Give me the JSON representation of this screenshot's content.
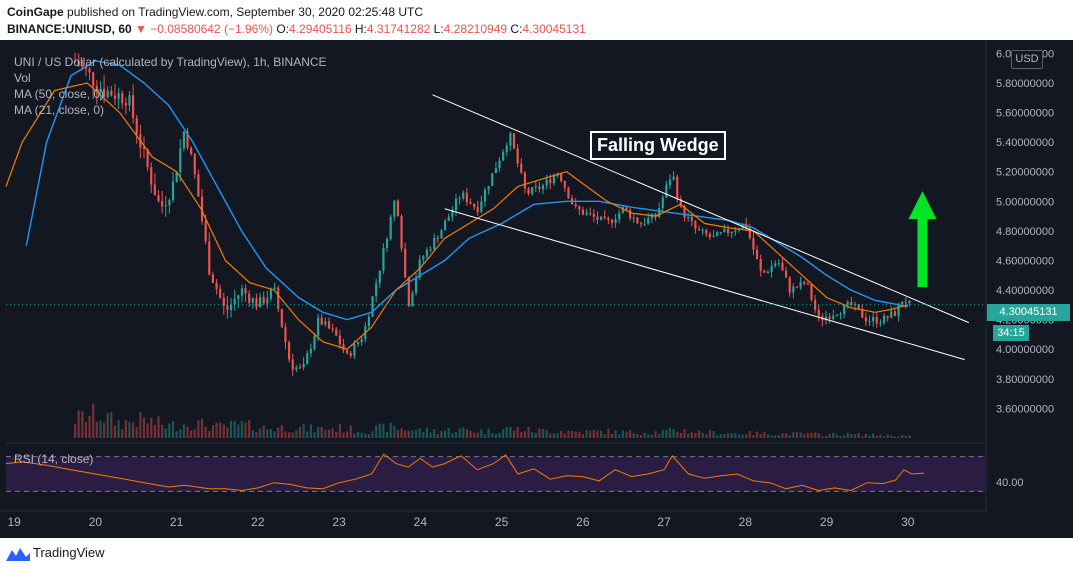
{
  "header": {
    "publisher": "CoinGape",
    "publish_text": "published on TradingView.com, September 30, 2020 02:25:48 UTC",
    "symbol_line": "BINANCE:UNIUSD, 60",
    "change": "▼ −0.08580642 (−1.96%)",
    "o_label": "O:",
    "o": "4.29405116",
    "h_label": "H:",
    "h": "4.31741282",
    "l_label": "L:",
    "l": "4.28210949",
    "c_label": "C:",
    "c": "4.30045131"
  },
  "legend": {
    "title": "UNI / US Dollar (calculated by TradingView), 1h, BINANCE",
    "vol": "Vol",
    "ma50": "MA (50, close, 0)",
    "ma21": "MA (21, close, 0)",
    "rsi": "RSI (14, close)"
  },
  "currency": "USD",
  "last_price": "4.30045131",
  "countdown": "34:15",
  "annotation": "Falling Wedge",
  "footer": {
    "brand": "TradingView"
  },
  "colors": {
    "background": "#131722",
    "up": "#26a69a",
    "down": "#ef5350",
    "ma50": "#2196f3",
    "ma21": "#f57c00",
    "arrow": "#00e626",
    "rsi_band": "#2a1c42"
  },
  "chart_data": {
    "type": "candlestick",
    "x_axis": {
      "ticks": [
        19,
        20,
        21,
        22,
        23,
        24,
        25,
        26,
        27,
        28,
        29,
        30
      ],
      "tick_labels": [
        "19",
        "20",
        "21",
        "22",
        "23",
        "24",
        "25",
        "26",
        "27",
        "28",
        "29",
        "30"
      ],
      "range": [
        18.9,
        30.95
      ]
    },
    "y_axis": {
      "range": [
        3.4,
        6.05
      ],
      "ticks": [
        3.6,
        3.8,
        4.0,
        4.2,
        4.4,
        4.6,
        4.8,
        5.0,
        5.2,
        5.4,
        5.6,
        5.8,
        6.0
      ],
      "tick_labels": [
        "3.60000000",
        "3.80000000",
        "4.00000000",
        "4.20000000",
        "4.40000000",
        "4.60000000",
        "4.80000000",
        "5.00000000",
        "5.20000000",
        "5.40000000",
        "5.60000000",
        "5.80000000",
        "6.00000000"
      ]
    },
    "last_price": 4.30045131,
    "close_path": [
      [
        19.75,
        5.95
      ],
      [
        20.1,
        5.75
      ],
      [
        20.4,
        5.7
      ],
      [
        20.6,
        5.3
      ],
      [
        20.8,
        4.95
      ],
      [
        20.95,
        5.1
      ],
      [
        21.1,
        5.5
      ],
      [
        21.25,
        5.1
      ],
      [
        21.4,
        4.55
      ],
      [
        21.6,
        4.25
      ],
      [
        21.8,
        4.4
      ],
      [
        22.0,
        4.3
      ],
      [
        22.2,
        4.4
      ],
      [
        22.4,
        3.9
      ],
      [
        22.55,
        3.85
      ],
      [
        22.75,
        4.2
      ],
      [
        22.95,
        4.1
      ],
      [
        23.1,
        3.95
      ],
      [
        23.3,
        4.1
      ],
      [
        23.5,
        4.55
      ],
      [
        23.7,
        5.05
      ],
      [
        23.85,
        4.3
      ],
      [
        24.0,
        4.6
      ],
      [
        24.25,
        4.8
      ],
      [
        24.5,
        5.05
      ],
      [
        24.7,
        4.95
      ],
      [
        24.9,
        5.2
      ],
      [
        25.1,
        5.45
      ],
      [
        25.3,
        5.05
      ],
      [
        25.5,
        5.1
      ],
      [
        25.7,
        5.2
      ],
      [
        25.9,
        4.95
      ],
      [
        26.1,
        4.9
      ],
      [
        26.3,
        4.85
      ],
      [
        26.5,
        4.95
      ],
      [
        26.7,
        4.85
      ],
      [
        26.9,
        4.9
      ],
      [
        27.1,
        5.2
      ],
      [
        27.2,
        4.95
      ],
      [
        27.4,
        4.8
      ],
      [
        27.6,
        4.75
      ],
      [
        27.8,
        4.8
      ],
      [
        28.0,
        4.85
      ],
      [
        28.2,
        4.5
      ],
      [
        28.4,
        4.6
      ],
      [
        28.55,
        4.4
      ],
      [
        28.75,
        4.45
      ],
      [
        28.9,
        4.2
      ],
      [
        29.1,
        4.25
      ],
      [
        29.3,
        4.3
      ],
      [
        29.5,
        4.2
      ],
      [
        29.7,
        4.2
      ],
      [
        29.85,
        4.25
      ],
      [
        29.95,
        4.35
      ],
      [
        30.0,
        4.3
      ]
    ],
    "ma50": [
      [
        19.15,
        4.7
      ],
      [
        19.4,
        5.4
      ],
      [
        19.7,
        5.85
      ],
      [
        20.0,
        5.95
      ],
      [
        20.3,
        5.92
      ],
      [
        20.6,
        5.8
      ],
      [
        20.9,
        5.65
      ],
      [
        21.2,
        5.4
      ],
      [
        21.5,
        5.1
      ],
      [
        21.8,
        4.8
      ],
      [
        22.1,
        4.55
      ],
      [
        22.5,
        4.35
      ],
      [
        22.8,
        4.25
      ],
      [
        23.1,
        4.2
      ],
      [
        23.4,
        4.25
      ],
      [
        23.7,
        4.4
      ],
      [
        24.0,
        4.5
      ],
      [
        24.3,
        4.6
      ],
      [
        24.6,
        4.75
      ],
      [
        25.0,
        4.85
      ],
      [
        25.4,
        4.98
      ],
      [
        25.8,
        5.0
      ],
      [
        26.2,
        5.0
      ],
      [
        26.6,
        4.96
      ],
      [
        27.0,
        4.93
      ],
      [
        27.4,
        4.9
      ],
      [
        27.8,
        4.87
      ],
      [
        28.1,
        4.82
      ],
      [
        28.4,
        4.72
      ],
      [
        28.7,
        4.62
      ],
      [
        29.0,
        4.5
      ],
      [
        29.3,
        4.4
      ],
      [
        29.6,
        4.33
      ],
      [
        29.9,
        4.3
      ],
      [
        30.0,
        4.29
      ]
    ],
    "ma21": [
      [
        18.9,
        5.1
      ],
      [
        19.1,
        5.4
      ],
      [
        19.5,
        5.75
      ],
      [
        19.9,
        5.8
      ],
      [
        20.3,
        5.6
      ],
      [
        20.7,
        5.3
      ],
      [
        21.0,
        5.2
      ],
      [
        21.3,
        4.95
      ],
      [
        21.6,
        4.6
      ],
      [
        21.9,
        4.45
      ],
      [
        22.2,
        4.4
      ],
      [
        22.5,
        4.2
      ],
      [
        22.8,
        4.05
      ],
      [
        23.1,
        4.0
      ],
      [
        23.4,
        4.15
      ],
      [
        23.7,
        4.4
      ],
      [
        24.0,
        4.55
      ],
      [
        24.3,
        4.75
      ],
      [
        24.6,
        4.85
      ],
      [
        24.9,
        4.95
      ],
      [
        25.2,
        5.1
      ],
      [
        25.5,
        5.15
      ],
      [
        25.8,
        5.2
      ],
      [
        26.0,
        5.12
      ],
      [
        26.3,
        5.0
      ],
      [
        26.6,
        4.92
      ],
      [
        26.9,
        4.9
      ],
      [
        27.2,
        4.98
      ],
      [
        27.5,
        4.85
      ],
      [
        27.8,
        4.82
      ],
      [
        28.1,
        4.8
      ],
      [
        28.4,
        4.65
      ],
      [
        28.7,
        4.5
      ],
      [
        29.0,
        4.35
      ],
      [
        29.3,
        4.28
      ],
      [
        29.6,
        4.25
      ],
      [
        29.8,
        4.27
      ],
      [
        30.0,
        4.3
      ]
    ],
    "wedge_upper": [
      [
        24.15,
        5.72
      ],
      [
        30.75,
        4.18
      ]
    ],
    "wedge_lower": [
      [
        24.3,
        4.95
      ],
      [
        30.7,
        3.93
      ]
    ],
    "rsi": {
      "range": [
        20,
        80
      ],
      "band": [
        30,
        70
      ],
      "ticks": [
        40
      ],
      "tick_labels": [
        "40.00"
      ],
      "series": [
        [
          18.9,
          62
        ],
        [
          19.1,
          64
        ],
        [
          19.4,
          60
        ],
        [
          19.7,
          55
        ],
        [
          20.0,
          50
        ],
        [
          20.3,
          45
        ],
        [
          20.6,
          40
        ],
        [
          20.9,
          35
        ],
        [
          21.1,
          37
        ],
        [
          21.4,
          33
        ],
        [
          21.6,
          33
        ],
        [
          21.8,
          31
        ],
        [
          22.0,
          34
        ],
        [
          22.2,
          40
        ],
        [
          22.4,
          38
        ],
        [
          22.6,
          34
        ],
        [
          22.8,
          33
        ],
        [
          23.0,
          40
        ],
        [
          23.2,
          44
        ],
        [
          23.4,
          50
        ],
        [
          23.55,
          73
        ],
        [
          23.7,
          62
        ],
        [
          23.85,
          58
        ],
        [
          24.0,
          68
        ],
        [
          24.15,
          58
        ],
        [
          24.3,
          62
        ],
        [
          24.5,
          71
        ],
        [
          24.7,
          55
        ],
        [
          24.9,
          62
        ],
        [
          25.05,
          72
        ],
        [
          25.2,
          50
        ],
        [
          25.4,
          56
        ],
        [
          25.6,
          44
        ],
        [
          25.8,
          48
        ],
        [
          26.0,
          47
        ],
        [
          26.2,
          42
        ],
        [
          26.4,
          55
        ],
        [
          26.6,
          47
        ],
        [
          26.8,
          50
        ],
        [
          27.0,
          55
        ],
        [
          27.1,
          71
        ],
        [
          27.3,
          50
        ],
        [
          27.5,
          45
        ],
        [
          27.7,
          48
        ],
        [
          27.9,
          50
        ],
        [
          28.1,
          42
        ],
        [
          28.3,
          40
        ],
        [
          28.5,
          33
        ],
        [
          28.7,
          37
        ],
        [
          28.9,
          31
        ],
        [
          29.1,
          34
        ],
        [
          29.3,
          31
        ],
        [
          29.5,
          40
        ],
        [
          29.7,
          39
        ],
        [
          29.85,
          43
        ],
        [
          29.95,
          55
        ],
        [
          30.05,
          50
        ],
        [
          30.2,
          51
        ]
      ]
    },
    "volume_profile": {
      "range": [
        0,
        100
      ],
      "series": [
        [
          18.9,
          80
        ],
        [
          19.1,
          28
        ],
        [
          19.4,
          22
        ],
        [
          19.7,
          30
        ],
        [
          20.0,
          40
        ],
        [
          20.3,
          25
        ],
        [
          20.6,
          30
        ],
        [
          20.9,
          20
        ],
        [
          21.2,
          25
        ],
        [
          21.5,
          18
        ],
        [
          21.8,
          22
        ],
        [
          22.1,
          16
        ],
        [
          22.4,
          18
        ],
        [
          22.7,
          15
        ],
        [
          23.0,
          16
        ],
        [
          23.3,
          12
        ],
        [
          23.6,
          18
        ],
        [
          23.9,
          14
        ],
        [
          24.2,
          12
        ],
        [
          24.5,
          14
        ],
        [
          24.8,
          11
        ],
        [
          25.1,
          16
        ],
        [
          25.4,
          12
        ],
        [
          25.7,
          12
        ],
        [
          26.0,
          10
        ],
        [
          26.3,
          11
        ],
        [
          26.6,
          9
        ],
        [
          26.9,
          10
        ],
        [
          27.2,
          13
        ],
        [
          27.5,
          9
        ],
        [
          27.8,
          8
        ],
        [
          28.1,
          8
        ],
        [
          28.4,
          7
        ],
        [
          28.7,
          7
        ],
        [
          29.0,
          6
        ],
        [
          29.3,
          6
        ],
        [
          29.6,
          5
        ],
        [
          29.9,
          4
        ],
        [
          30.05,
          3
        ]
      ]
    }
  }
}
